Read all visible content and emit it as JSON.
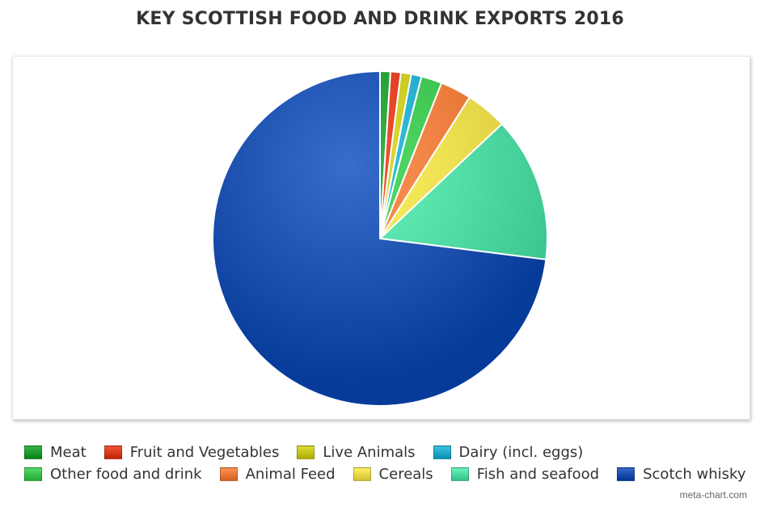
{
  "chart_data": {
    "type": "pie",
    "title": "KEY SCOTTISH FOOD AND DRINK EXPORTS 2016",
    "slices": [
      {
        "label": "Meat",
        "value": 1.0,
        "color": "#1f9a2e"
      },
      {
        "label": "Fruit and Vegetables",
        "value": 1.0,
        "color": "#d93a1e"
      },
      {
        "label": "Live Animals",
        "value": 1.0,
        "color": "#c4c41a"
      },
      {
        "label": "Dairy (incl. eggs)",
        "value": 1.0,
        "color": "#22a8c8"
      },
      {
        "label": "Other food and drink",
        "value": 2.0,
        "color": "#3cc24e"
      },
      {
        "label": "Animal Feed",
        "value": 3.0,
        "color": "#ee7a3a"
      },
      {
        "label": "Cereals",
        "value": 4.0,
        "color": "#ecd94a"
      },
      {
        "label": "Fish and seafood",
        "value": 14.0,
        "color": "#4fd9a3"
      },
      {
        "label": "Scotch whisky",
        "value": 73.0,
        "color": "#1b4fae"
      }
    ],
    "legend_position": "bottom",
    "start_angle": "top, clockwise"
  },
  "legend": {
    "rows": [
      [
        0,
        1,
        2,
        3
      ],
      [
        4,
        5,
        6,
        7,
        8
      ]
    ]
  },
  "watermark": "meta-chart.com"
}
